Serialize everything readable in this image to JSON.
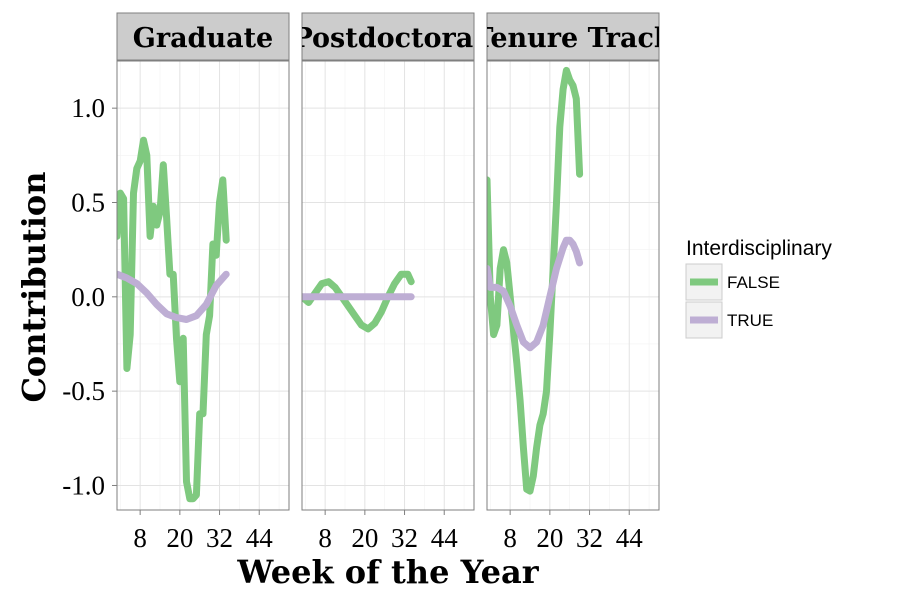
{
  "chart_data": {
    "type": "line",
    "xlabel": "Week of the Year",
    "ylabel": "Contribution",
    "xlim": [
      1,
      53
    ],
    "ylim": [
      -1.13,
      1.25
    ],
    "x_ticks": [
      8,
      20,
      32,
      44
    ],
    "y_ticks": [
      -1.0,
      -0.5,
      0.0,
      0.5,
      1.0
    ],
    "y_tick_labels": [
      "-1.0",
      "-0.5",
      "0.0",
      "0.5",
      "1.0"
    ],
    "grid": true,
    "facet_labels": [
      "Graduate",
      "Postdoctoral",
      "Tenure Track"
    ],
    "legend": {
      "title": "Interdisciplinary",
      "placement": "right",
      "entries": [
        {
          "label": "FALSE",
          "color": "#7fc97f"
        },
        {
          "label": "TRUE",
          "color": "#beaed4"
        }
      ]
    },
    "facets": [
      {
        "label": "Graduate",
        "series": [
          {
            "name": "FALSE",
            "color": "#7fc97f",
            "points": [
              [
                1,
                0.32
              ],
              [
                2,
                0.55
              ],
              [
                3,
                0.52
              ],
              [
                4,
                -0.38
              ],
              [
                5,
                -0.2
              ],
              [
                6,
                0.55
              ],
              [
                7,
                0.68
              ],
              [
                8,
                0.72
              ],
              [
                9,
                0.83
              ],
              [
                10,
                0.75
              ],
              [
                11,
                0.32
              ],
              [
                12,
                0.48
              ],
              [
                13,
                0.38
              ],
              [
                14,
                0.45
              ],
              [
                15,
                0.7
              ],
              [
                16,
                0.42
              ],
              [
                17,
                0.12
              ],
              [
                18,
                0.12
              ],
              [
                19,
                -0.22
              ],
              [
                20,
                -0.45
              ],
              [
                21,
                -0.22
              ],
              [
                22,
                -0.98
              ],
              [
                23,
                -1.07
              ],
              [
                24,
                -1.07
              ],
              [
                25,
                -1.05
              ],
              [
                26,
                -0.62
              ],
              [
                27,
                -0.62
              ],
              [
                28,
                -0.2
              ],
              [
                29,
                -0.1
              ],
              [
                30,
                0.28
              ],
              [
                31,
                0.22
              ],
              [
                32,
                0.5
              ],
              [
                33,
                0.62
              ],
              [
                34,
                0.3
              ]
            ]
          },
          {
            "name": "TRUE",
            "color": "#beaed4",
            "points": [
              [
                1,
                0.12
              ],
              [
                4,
                0.1
              ],
              [
                7,
                0.07
              ],
              [
                10,
                0.02
              ],
              [
                13,
                -0.04
              ],
              [
                16,
                -0.09
              ],
              [
                19,
                -0.11
              ],
              [
                22,
                -0.12
              ],
              [
                25,
                -0.1
              ],
              [
                28,
                -0.04
              ],
              [
                31,
                0.06
              ],
              [
                34,
                0.12
              ]
            ]
          }
        ]
      },
      {
        "label": "Postdoctoral",
        "series": [
          {
            "name": "FALSE",
            "color": "#7fc97f",
            "points": [
              [
                1,
                0.0
              ],
              [
                3,
                -0.03
              ],
              [
                5,
                0.02
              ],
              [
                7,
                0.07
              ],
              [
                9,
                0.08
              ],
              [
                11,
                0.05
              ],
              [
                13,
                0.0
              ],
              [
                15,
                -0.05
              ],
              [
                17,
                -0.1
              ],
              [
                19,
                -0.15
              ],
              [
                21,
                -0.17
              ],
              [
                23,
                -0.14
              ],
              [
                25,
                -0.08
              ],
              [
                27,
                0.0
              ],
              [
                29,
                0.07
              ],
              [
                31,
                0.12
              ],
              [
                33,
                0.12
              ],
              [
                34,
                0.08
              ]
            ]
          },
          {
            "name": "TRUE",
            "color": "#beaed4",
            "points": [
              [
                1,
                0.0
              ],
              [
                34,
                0.0
              ]
            ]
          }
        ]
      },
      {
        "label": "Tenure Track",
        "series": [
          {
            "name": "FALSE",
            "color": "#7fc97f",
            "points": [
              [
                1,
                0.62
              ],
              [
                2,
                0.0
              ],
              [
                3,
                -0.2
              ],
              [
                4,
                -0.15
              ],
              [
                5,
                0.15
              ],
              [
                6,
                0.25
              ],
              [
                7,
                0.18
              ],
              [
                8,
                0.0
              ],
              [
                9,
                -0.18
              ],
              [
                10,
                -0.35
              ],
              [
                11,
                -0.55
              ],
              [
                12,
                -0.8
              ],
              [
                13,
                -1.02
              ],
              [
                14,
                -1.03
              ],
              [
                15,
                -0.95
              ],
              [
                16,
                -0.8
              ],
              [
                17,
                -0.68
              ],
              [
                18,
                -0.62
              ],
              [
                19,
                -0.5
              ],
              [
                20,
                -0.2
              ],
              [
                21,
                0.15
              ],
              [
                22,
                0.5
              ],
              [
                23,
                0.9
              ],
              [
                24,
                1.1
              ],
              [
                25,
                1.2
              ],
              [
                26,
                1.15
              ],
              [
                27,
                1.12
              ],
              [
                28,
                1.05
              ],
              [
                29,
                0.65
              ]
            ]
          },
          {
            "name": "TRUE",
            "color": "#beaed4",
            "points": [
              [
                1,
                0.15
              ],
              [
                2,
                0.05
              ],
              [
                4,
                0.05
              ],
              [
                6,
                0.03
              ],
              [
                8,
                -0.05
              ],
              [
                10,
                -0.15
              ],
              [
                12,
                -0.24
              ],
              [
                14,
                -0.27
              ],
              [
                16,
                -0.24
              ],
              [
                18,
                -0.15
              ],
              [
                20,
                0.0
              ],
              [
                22,
                0.15
              ],
              [
                24,
                0.26
              ],
              [
                25,
                0.3
              ],
              [
                26,
                0.3
              ],
              [
                27,
                0.28
              ],
              [
                28,
                0.24
              ],
              [
                29,
                0.18
              ]
            ]
          }
        ]
      }
    ]
  }
}
